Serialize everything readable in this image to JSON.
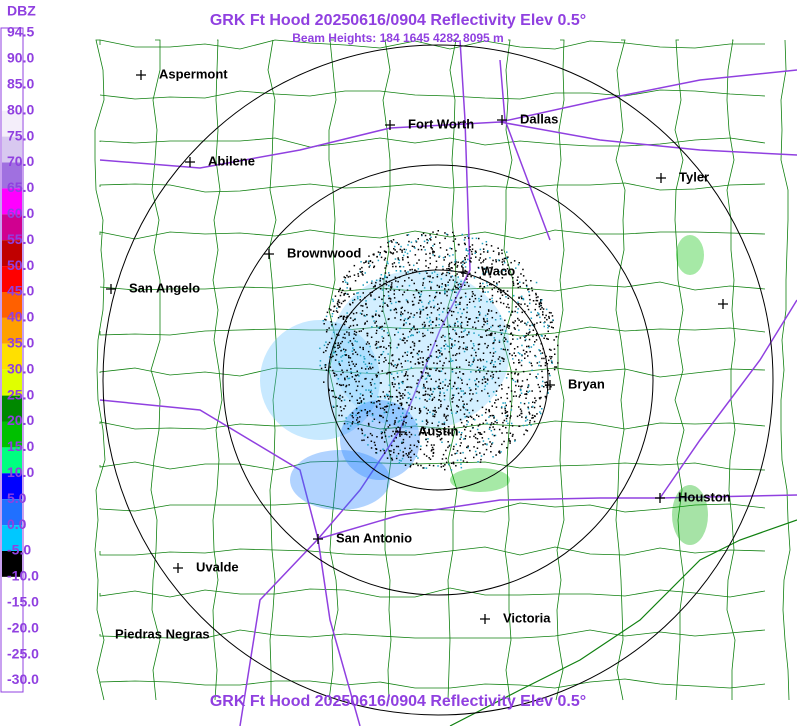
{
  "header": {
    "title": "GRK Ft Hood 20250616/0904 Reflectivity Elev 0.5°",
    "beam_heights": "Beam Heights: 184 1645 4282 8095 m"
  },
  "footer": {
    "title": "GRK Ft Hood 20250616/0904 Reflectivity Elev 0.5°"
  },
  "legend": {
    "unit": "DBZ",
    "levels": [
      {
        "label": "94.5",
        "color": "#ffffff"
      },
      {
        "label": "90.0",
        "color": "#ffffff"
      },
      {
        "label": "85.0",
        "color": "#ffffff"
      },
      {
        "label": "80.0",
        "color": "#f4eefa"
      },
      {
        "label": "75.0",
        "color": "#d8c8f0"
      },
      {
        "label": "70.0",
        "color": "#a070e0"
      },
      {
        "label": "65.0",
        "color": "#ff00ff"
      },
      {
        "label": "60.0",
        "color": "#d00090"
      },
      {
        "label": "55.0",
        "color": "#c00000"
      },
      {
        "label": "50.0",
        "color": "#ff0000"
      },
      {
        "label": "45.0",
        "color": "#ff6000"
      },
      {
        "label": "40.0",
        "color": "#ffa000"
      },
      {
        "label": "35.0",
        "color": "#ffe000"
      },
      {
        "label": "30.0",
        "color": "#e0ff00"
      },
      {
        "label": "25.0",
        "color": "#008800"
      },
      {
        "label": "20.0",
        "color": "#00c000"
      },
      {
        "label": "15.0",
        "color": "#00ff80"
      },
      {
        "label": "10.0",
        "color": "#0000ff"
      },
      {
        "label": "5.0",
        "color": "#2070ff"
      },
      {
        "label": "0.0",
        "color": "#00c8ff"
      },
      {
        "label": "-5.0",
        "color": "#000000"
      },
      {
        "label": "-10.0",
        "color": "#ffffff"
      },
      {
        "label": "-15.0",
        "color": "#ffffff"
      },
      {
        "label": "-20.0",
        "color": "#ffffff"
      },
      {
        "label": "-25.0",
        "color": "#ffffff"
      },
      {
        "label": "-30.0",
        "color": "#ffffff"
      }
    ]
  },
  "cities": [
    {
      "name": "Aspermont"
    },
    {
      "name": "Fort Worth"
    },
    {
      "name": "Dallas"
    },
    {
      "name": "Abilene"
    },
    {
      "name": "Tyler"
    },
    {
      "name": "Brownwood"
    },
    {
      "name": "Waco"
    },
    {
      "name": "San Angelo"
    },
    {
      "name": "Bryan"
    },
    {
      "name": "Austin"
    },
    {
      "name": "Houston"
    },
    {
      "name": "San Antonio"
    },
    {
      "name": "Uvalde"
    },
    {
      "name": "Victoria"
    },
    {
      "name": "Piedras Negras"
    }
  ]
}
